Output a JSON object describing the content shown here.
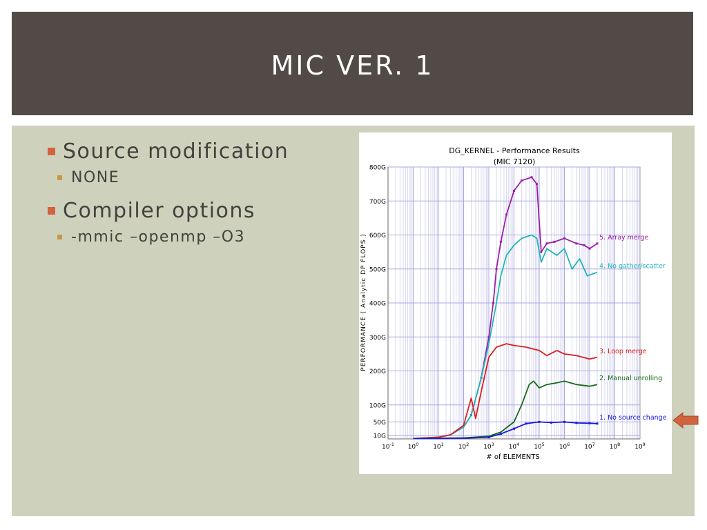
{
  "slide": {
    "title": "MIC VER. 1",
    "bullets": [
      {
        "text": "Source modification",
        "sub": [
          "NONE"
        ]
      },
      {
        "text": "Compiler options",
        "sub": [
          "-mmic –openmp –O3"
        ]
      }
    ]
  },
  "colors": {
    "header": "#524a47",
    "content_bg": "#ced2bd",
    "bullet_marker": "#d1643f",
    "sub_bullet_marker": "#c8964a",
    "arrow": "#d1643f"
  },
  "chart_data": {
    "type": "line",
    "title": "DG_KERNEL - Performance Results",
    "subtitle": "(MIC 7120)",
    "xlabel": "# of ELEMENTS",
    "ylabel": "PERFORMANCE ( Analytic DP FLOPS )",
    "x_scale": "log10",
    "xlim": [
      0.1,
      1000000000
    ],
    "x_ticks": [
      {
        "exp": -1,
        "base": "10",
        "sup": "-1"
      },
      {
        "exp": 0,
        "base": "10",
        "sup": "0"
      },
      {
        "exp": 1,
        "base": "10",
        "sup": "1"
      },
      {
        "exp": 2,
        "base": "10",
        "sup": "2"
      },
      {
        "exp": 3,
        "base": "10",
        "sup": "3"
      },
      {
        "exp": 4,
        "base": "10",
        "sup": "4"
      },
      {
        "exp": 5,
        "base": "10",
        "sup": "5"
      },
      {
        "exp": 6,
        "base": "10",
        "sup": "6"
      },
      {
        "exp": 7,
        "base": "10",
        "sup": "7"
      },
      {
        "exp": 8,
        "base": "10",
        "sup": "8"
      },
      {
        "exp": 9,
        "base": "10",
        "sup": "9"
      }
    ],
    "ylim": [
      0,
      800
    ],
    "y_unit": "G",
    "y_ticks": [
      {
        "value": 10,
        "label": "10G"
      },
      {
        "value": 50,
        "label": "50G"
      },
      {
        "value": 100,
        "label": "100G"
      },
      {
        "value": 200,
        "label": "200G"
      },
      {
        "value": 300,
        "label": "300G"
      },
      {
        "value": 400,
        "label": "400G"
      },
      {
        "value": 500,
        "label": "500G"
      },
      {
        "value": 600,
        "label": "600G"
      },
      {
        "value": 700,
        "label": "700G"
      },
      {
        "value": 800,
        "label": "800G"
      }
    ],
    "grid": true,
    "legend": "inline labels at right end of each series",
    "series": [
      {
        "name": "5. Array merge",
        "color": "#9b1fa6",
        "markers": true,
        "points": [
          [
            1,
            1
          ],
          [
            3,
            3
          ],
          [
            10,
            5
          ],
          [
            30,
            12
          ],
          [
            100,
            35
          ],
          [
            200,
            70
          ],
          [
            500,
            180
          ],
          [
            1000,
            300
          ],
          [
            1500,
            400
          ],
          [
            2000,
            500
          ],
          [
            3000,
            580
          ],
          [
            5000,
            660
          ],
          [
            10000,
            730
          ],
          [
            20000,
            760
          ],
          [
            50000,
            770
          ],
          [
            80000,
            750
          ],
          [
            120000,
            550
          ],
          [
            200000,
            575
          ],
          [
            400000,
            580
          ],
          [
            1000000,
            590
          ],
          [
            3000000,
            575
          ],
          [
            6000000,
            570
          ],
          [
            10000000,
            560
          ],
          [
            20000000,
            575
          ]
        ]
      },
      {
        "name": "4. No gather/scatter",
        "color": "#1fb5b8",
        "markers": false,
        "points": [
          [
            1,
            1
          ],
          [
            3,
            3
          ],
          [
            10,
            5
          ],
          [
            30,
            12
          ],
          [
            100,
            35
          ],
          [
            200,
            70
          ],
          [
            500,
            180
          ],
          [
            1000,
            280
          ],
          [
            2000,
            400
          ],
          [
            3000,
            480
          ],
          [
            5000,
            540
          ],
          [
            10000,
            570
          ],
          [
            20000,
            590
          ],
          [
            50000,
            600
          ],
          [
            80000,
            590
          ],
          [
            120000,
            520
          ],
          [
            200000,
            560
          ],
          [
            500000,
            540
          ],
          [
            1000000,
            560
          ],
          [
            2000000,
            500
          ],
          [
            4000000,
            530
          ],
          [
            8000000,
            480
          ],
          [
            20000000,
            490
          ]
        ]
      },
      {
        "name": "3. Loop merge",
        "color": "#dd1c1c",
        "markers": false,
        "points": [
          [
            1,
            1
          ],
          [
            3,
            3
          ],
          [
            10,
            5
          ],
          [
            30,
            12
          ],
          [
            100,
            40
          ],
          [
            200,
            120
          ],
          [
            300,
            60
          ],
          [
            500,
            140
          ],
          [
            1000,
            240
          ],
          [
            2000,
            270
          ],
          [
            5000,
            280
          ],
          [
            10000,
            275
          ],
          [
            30000,
            270
          ],
          [
            100000,
            260
          ],
          [
            200000,
            245
          ],
          [
            500000,
            260
          ],
          [
            1000000,
            250
          ],
          [
            3000000,
            245
          ],
          [
            10000000,
            235
          ],
          [
            20000000,
            240
          ]
        ]
      },
      {
        "name": "2. Manual unrolling",
        "color": "#156b15",
        "markers": false,
        "points": [
          [
            1,
            1
          ],
          [
            10,
            2
          ],
          [
            100,
            3
          ],
          [
            1000,
            8
          ],
          [
            3000,
            20
          ],
          [
            10000,
            50
          ],
          [
            20000,
            100
          ],
          [
            40000,
            160
          ],
          [
            60000,
            170
          ],
          [
            100000,
            150
          ],
          [
            200000,
            160
          ],
          [
            500000,
            165
          ],
          [
            1000000,
            170
          ],
          [
            3000000,
            160
          ],
          [
            10000000,
            155
          ],
          [
            20000000,
            160
          ]
        ]
      },
      {
        "name": "1. No source change",
        "color": "#1a1ad6",
        "markers": true,
        "points": [
          [
            1,
            1
          ],
          [
            10,
            1
          ],
          [
            100,
            2
          ],
          [
            1000,
            5
          ],
          [
            3000,
            15
          ],
          [
            10000,
            30
          ],
          [
            30000,
            45
          ],
          [
            100000,
            50
          ],
          [
            300000,
            48
          ],
          [
            1000000,
            50
          ],
          [
            3000000,
            47
          ],
          [
            10000000,
            46
          ],
          [
            20000000,
            45
          ]
        ]
      }
    ]
  }
}
